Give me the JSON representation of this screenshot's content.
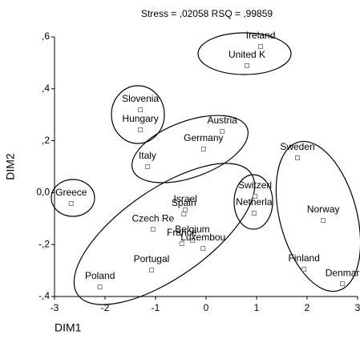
{
  "chart_data": {
    "type": "scatter",
    "title": "Stress =  ,02058    RSQ = ,99859",
    "xlabel": "DIM1",
    "ylabel": "DIM2",
    "series": [
      {
        "color": "#808080",
        "labels": [
          "Ireland",
          "United K",
          "Slovenia",
          "Hungary",
          "Austria",
          "Germany",
          "Italy",
          "Sweden",
          "Greece",
          "Switzerl",
          "Netherla",
          "Israel",
          "Spain",
          "Norway",
          "Czech Re",
          "France",
          "Belgium",
          "Luxembou",
          "Portugal",
          "Finland",
          "Poland",
          "Denmar"
        ],
        "x": [
          1.08,
          0.81,
          -1.3,
          -1.3,
          0.32,
          -0.05,
          -1.16,
          1.81,
          -2.67,
          0.97,
          0.95,
          -0.41,
          -0.44,
          2.32,
          -1.05,
          -0.48,
          -0.27,
          -0.06,
          -1.08,
          1.94,
          -2.1,
          2.7
        ],
        "values": [
          0.563,
          0.489,
          0.319,
          0.242,
          0.236,
          0.168,
          0.1,
          0.134,
          -0.042,
          -0.014,
          -0.079,
          -0.066,
          -0.082,
          -0.107,
          -0.141,
          -0.196,
          -0.184,
          -0.215,
          -0.298,
          -0.295,
          -0.363,
          -0.351
        ]
      }
    ],
    "xlim": [
      -3,
      3
    ],
    "xticks": [
      -3,
      -2,
      -1,
      0,
      1,
      2,
      3
    ],
    "ylim": [
      -0.4,
      0.6
    ],
    "yticks": [
      {
        "value": -0.4,
        "label": "-,4"
      },
      {
        "value": -0.2,
        "label": "-,2"
      },
      {
        "value": 0,
        "label": "0,0"
      },
      {
        "value": 0.2,
        "label": ",2"
      },
      {
        "value": 0.4,
        "label": ",4"
      },
      {
        "value": 0.6,
        "label": ",6"
      }
    ]
  }
}
